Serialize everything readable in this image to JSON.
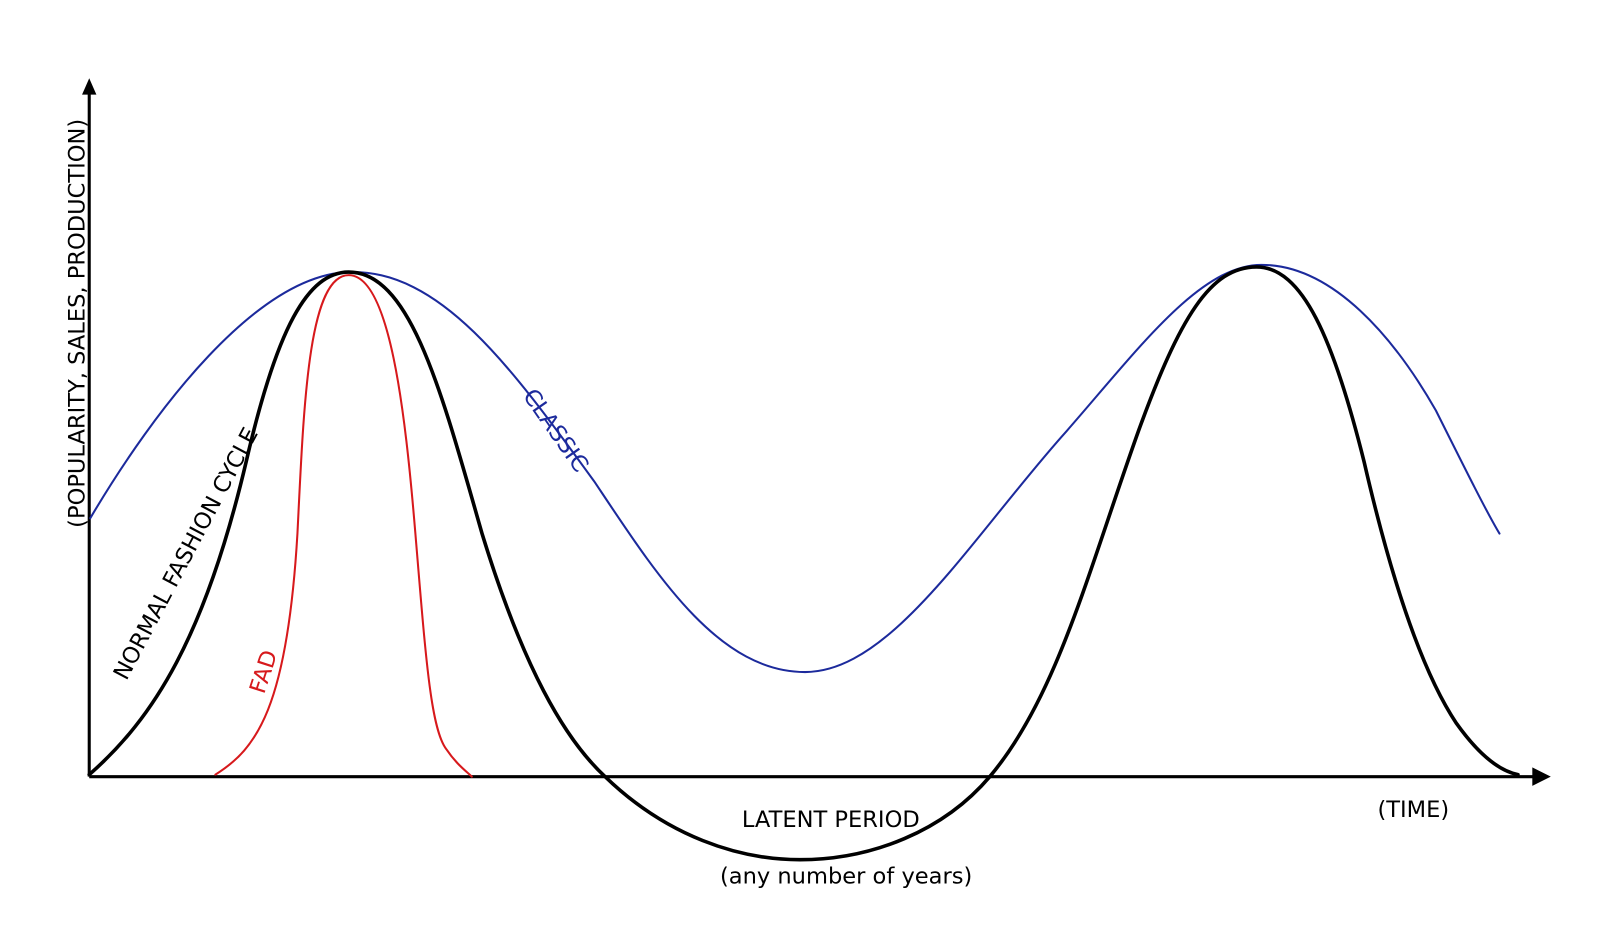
{
  "axes": {
    "y_label": "(POPULARITY, SALES, PRODUCTION)",
    "x_label": "(TIME)"
  },
  "curves": {
    "normal": "NORMAL FASHION CYCLE",
    "fad": "FAD",
    "classic": "CLASSIC"
  },
  "latent": {
    "label": "LATENT PERIOD",
    "note": "(any number of years)"
  }
}
